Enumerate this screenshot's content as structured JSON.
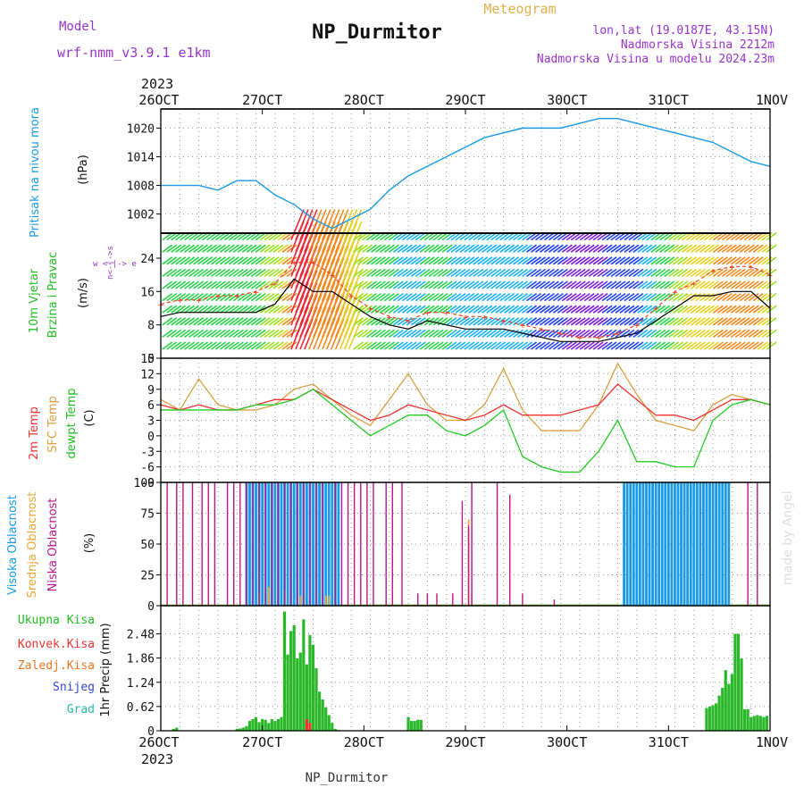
{
  "header": {
    "model_label": "Model",
    "model_name": "wrf-nmm_v3.9.1 e1km",
    "title": "NP_Durmitor",
    "meteogram_label": "Meteogram",
    "location": "lon,lat (19.0187E, 43.15N)",
    "elevation": "Nadmorska Visina 2212m",
    "model_elevation": "Nadmorska Visina u modelu 2024.23m",
    "year_top": "2023",
    "year_bottom": "2023",
    "footer_station": "NP_Durmitor",
    "watermark": "made by Angel"
  },
  "colors": {
    "pressure": "#1a9ae6",
    "temp": "#ee3333",
    "sfc": "#d8a040",
    "dew": "#22cc22",
    "high_cloud": "#1a9ae6",
    "mid_cloud": "#e8a838",
    "low_cloud": "#b8168a",
    "convective": "#ee3333",
    "precip": "#2ab82a",
    "gust": "#ee4422",
    "speed": "#000000",
    "model_text": "#9933cc"
  },
  "x_axis": {
    "day_ticks": [
      "26OCT",
      "27OCT",
      "28OCT",
      "29OCT",
      "30OCT",
      "31OCT",
      "1NOV"
    ]
  },
  "panels": {
    "pressure": {
      "label": "Pritisak na nivou mora",
      "unit": "(hPa)"
    },
    "wind": {
      "label1": "10m Vjetar",
      "label2": "Brzina i Pravac",
      "unit": "(m/s)",
      "compass": "w <-|-> e",
      "compass_vert": "n<-|->s"
    },
    "temp": {
      "label1": "2m Temp",
      "label2": "SFC Temp",
      "label3": "dewpt Temp",
      "unit": "(C)"
    },
    "cloud": {
      "label1": "Visoka Oblacnost",
      "label2": "Srednja Oblacnost",
      "label3": "Niska Oblacnost",
      "unit": "(%)"
    },
    "precip": {
      "legend": [
        "Ukupna Kisa",
        "Konvek.Kisa",
        "Zaledj.Kisa",
        "Snijeg",
        "Grad"
      ],
      "unit": "1hr Precip (mm)"
    }
  },
  "chart_data": [
    {
      "type": "line",
      "title": "Pritisak na nivou mora",
      "ylabel": "(hPa)",
      "ylim": [
        998,
        1024
      ],
      "yticks": [
        1002,
        1008,
        1014,
        1020
      ],
      "x_hours": [
        0,
        6,
        12,
        18,
        24,
        30,
        36,
        42,
        48,
        54,
        60,
        66,
        72,
        78,
        84,
        90,
        96,
        102,
        108,
        114,
        120,
        126,
        132,
        138,
        144,
        150,
        156,
        162,
        168,
        174,
        180,
        186,
        192
      ],
      "series": [
        {
          "values": [
            1008,
            1008,
            1008,
            1007,
            1009,
            1009,
            1006,
            1004,
            1001,
            999,
            1001,
            1003,
            1007,
            1010,
            1012,
            1014,
            1016,
            1018,
            1019,
            1020,
            1020,
            1020,
            1021,
            1022,
            1022,
            1021,
            1020,
            1019,
            1018,
            1017,
            1015,
            1013,
            1012
          ]
        }
      ]
    },
    {
      "type": "line",
      "title": "10m Vjetar Brzina i Pravac",
      "ylabel": "(m/s)",
      "ylim": [
        0,
        30
      ],
      "yticks": [
        0,
        8,
        16,
        24
      ],
      "x_hours": [
        0,
        6,
        12,
        18,
        24,
        30,
        36,
        42,
        48,
        54,
        60,
        66,
        72,
        78,
        84,
        90,
        96,
        102,
        108,
        114,
        120,
        126,
        132,
        138,
        144,
        150,
        156,
        162,
        168,
        174,
        180,
        186,
        192
      ],
      "series": [
        {
          "name": "speed",
          "values": [
            10,
            11,
            11,
            11,
            11,
            11,
            13,
            19,
            16,
            16,
            13,
            10,
            8,
            7,
            9,
            8,
            7,
            7,
            7,
            6,
            5,
            4,
            4,
            4,
            5,
            6,
            9,
            12,
            15,
            15,
            16,
            16,
            12
          ]
        },
        {
          "name": "gust",
          "values": [
            13,
            14,
            14,
            15,
            15,
            16,
            18,
            23,
            23,
            20,
            15,
            12,
            10,
            9,
            11,
            11,
            10,
            10,
            9,
            8,
            7,
            6,
            5,
            5,
            6,
            8,
            12,
            16,
            18,
            21,
            22,
            22,
            20
          ]
        }
      ]
    },
    {
      "type": "line",
      "title": "2m Temp / SFC Temp / dewpt Temp",
      "ylabel": "(C)",
      "ylim": [
        -9,
        15
      ],
      "yticks": [
        -9,
        -6,
        -3,
        0,
        3,
        6,
        9,
        12,
        15
      ],
      "x_hours": [
        0,
        6,
        12,
        18,
        24,
        30,
        36,
        42,
        48,
        54,
        60,
        66,
        72,
        78,
        84,
        90,
        96,
        102,
        108,
        114,
        120,
        126,
        132,
        138,
        144,
        150,
        156,
        162,
        168,
        174,
        180,
        186,
        192
      ],
      "series": [
        {
          "name": "2m Temp",
          "values": [
            6,
            5,
            6,
            5,
            5,
            6,
            7,
            7,
            9,
            7,
            5,
            3,
            4,
            6,
            5,
            4,
            3,
            4,
            6,
            4,
            4,
            4,
            5,
            6,
            10,
            7,
            4,
            4,
            3,
            5,
            7,
            7,
            6
          ]
        },
        {
          "name": "SFC Temp",
          "values": [
            7,
            5,
            11,
            6,
            5,
            5,
            6,
            9,
            10,
            7,
            4,
            2,
            7,
            12,
            6,
            3,
            3,
            6,
            13,
            5,
            1,
            1,
            1,
            6,
            14,
            8,
            3,
            2,
            1,
            6,
            8,
            7,
            6
          ]
        },
        {
          "name": "dewpt Temp",
          "values": [
            5,
            5,
            5,
            5,
            5,
            6,
            6,
            7,
            9,
            6,
            3,
            0,
            2,
            4,
            4,
            1,
            0,
            2,
            5,
            -4,
            -6,
            -7,
            -7,
            -3,
            3,
            -5,
            -5,
            -6,
            -6,
            3,
            6,
            7,
            6
          ]
        }
      ]
    },
    {
      "type": "bar",
      "title": "Oblacnost",
      "ylabel": "(%)",
      "ylim": [
        0,
        100
      ],
      "yticks": [
        0,
        25,
        50,
        75,
        100
      ],
      "series": [
        {
          "name": "Visoka Oblacnost",
          "x_hours": [
            27,
            28,
            29,
            30,
            31,
            32,
            33,
            34,
            35,
            36,
            37,
            38,
            39,
            40,
            41,
            42,
            43,
            44,
            45,
            46,
            47,
            48,
            49,
            50,
            51,
            52,
            53,
            54,
            55,
            56,
            146,
            147,
            148,
            149,
            150,
            151,
            152,
            153,
            154,
            155,
            156,
            157,
            158,
            159,
            160,
            161,
            162,
            163,
            164,
            165,
            166,
            167,
            168,
            169,
            170,
            171,
            172,
            173,
            174,
            175,
            176,
            177,
            178,
            179
          ],
          "values": [
            100,
            100,
            100,
            100,
            100,
            100,
            100,
            100,
            100,
            100,
            100,
            100,
            100,
            100,
            100,
            100,
            100,
            100,
            100,
            100,
            100,
            100,
            100,
            100,
            100,
            100,
            100,
            100,
            100,
            100,
            100,
            100,
            100,
            100,
            100,
            100,
            100,
            100,
            100,
            100,
            100,
            100,
            100,
            100,
            100,
            100,
            100,
            100,
            100,
            100,
            100,
            100,
            100,
            100,
            100,
            100,
            100,
            100,
            100,
            100,
            100,
            100,
            100,
            100
          ]
        },
        {
          "name": "Srednja Oblacnost",
          "x_hours": [
            31,
            34,
            39,
            44,
            52,
            53,
            97,
            98
          ],
          "values": [
            10,
            15,
            12,
            8,
            8,
            8,
            70,
            10
          ]
        },
        {
          "name": "Niska Oblacnost",
          "x_hours": [
            2,
            5,
            7,
            10,
            13,
            15,
            17,
            21,
            23,
            25,
            27,
            29,
            31,
            33,
            35,
            37,
            39,
            41,
            43,
            45,
            47,
            49,
            51,
            55,
            57,
            59,
            61,
            63,
            65,
            67,
            71,
            73,
            76,
            81,
            84,
            87,
            92,
            95,
            97,
            98,
            106,
            110,
            114,
            124,
            185,
            188
          ],
          "values": [
            100,
            100,
            100,
            100,
            100,
            100,
            100,
            100,
            100,
            100,
            100,
            100,
            100,
            100,
            100,
            100,
            100,
            100,
            100,
            100,
            100,
            100,
            100,
            100,
            100,
            100,
            100,
            100,
            100,
            100,
            100,
            100,
            100,
            10,
            10,
            10,
            10,
            85,
            65,
            100,
            100,
            90,
            10,
            5,
            100,
            100
          ]
        }
      ]
    },
    {
      "type": "bar",
      "title": "1hr Precip",
      "ylabel": "1hr Precip (mm)",
      "ylim": [
        0,
        3.2
      ],
      "yticks": [
        0,
        0.62,
        1.24,
        1.86,
        2.48
      ],
      "series": [
        {
          "name": "Ukupna Kisa",
          "x_hours": [
            4,
            5,
            24,
            25,
            26,
            27,
            28,
            29,
            30,
            31,
            32,
            33,
            34,
            35,
            36,
            37,
            38,
            39,
            40,
            41,
            42,
            43,
            44,
            45,
            46,
            47,
            48,
            49,
            50,
            51,
            52,
            53,
            54,
            55,
            56,
            78,
            79,
            80,
            81,
            82,
            172,
            173,
            174,
            175,
            176,
            177,
            178,
            179,
            180,
            181,
            182,
            183,
            184,
            185,
            186,
            187,
            188,
            189,
            190,
            191
          ],
          "values": [
            0.05,
            0.08,
            0.05,
            0.06,
            0.08,
            0.12,
            0.25,
            0.3,
            0.35,
            0.22,
            0.3,
            0.28,
            0.2,
            0.3,
            0.25,
            0.3,
            0.35,
            3.05,
            1.95,
            2.55,
            2.7,
            1.85,
            2.0,
            2.85,
            1.7,
            2.45,
            2.2,
            1.6,
            1.0,
            0.8,
            0.6,
            0.4,
            0.2,
            0.05,
            0.02,
            0.35,
            0.25,
            0.25,
            0.28,
            0.28,
            0.58,
            0.62,
            0.65,
            0.7,
            0.9,
            1.1,
            1.55,
            1.2,
            1.45,
            2.48,
            2.48,
            1.85,
            0.55,
            0.55,
            0.35,
            0.38,
            0.4,
            0.38,
            0.35,
            0.38
          ]
        },
        {
          "name": "Konvek.Kisa",
          "x_hours": [
            46,
            47
          ],
          "values": [
            0.3,
            0.2
          ]
        }
      ]
    }
  ]
}
